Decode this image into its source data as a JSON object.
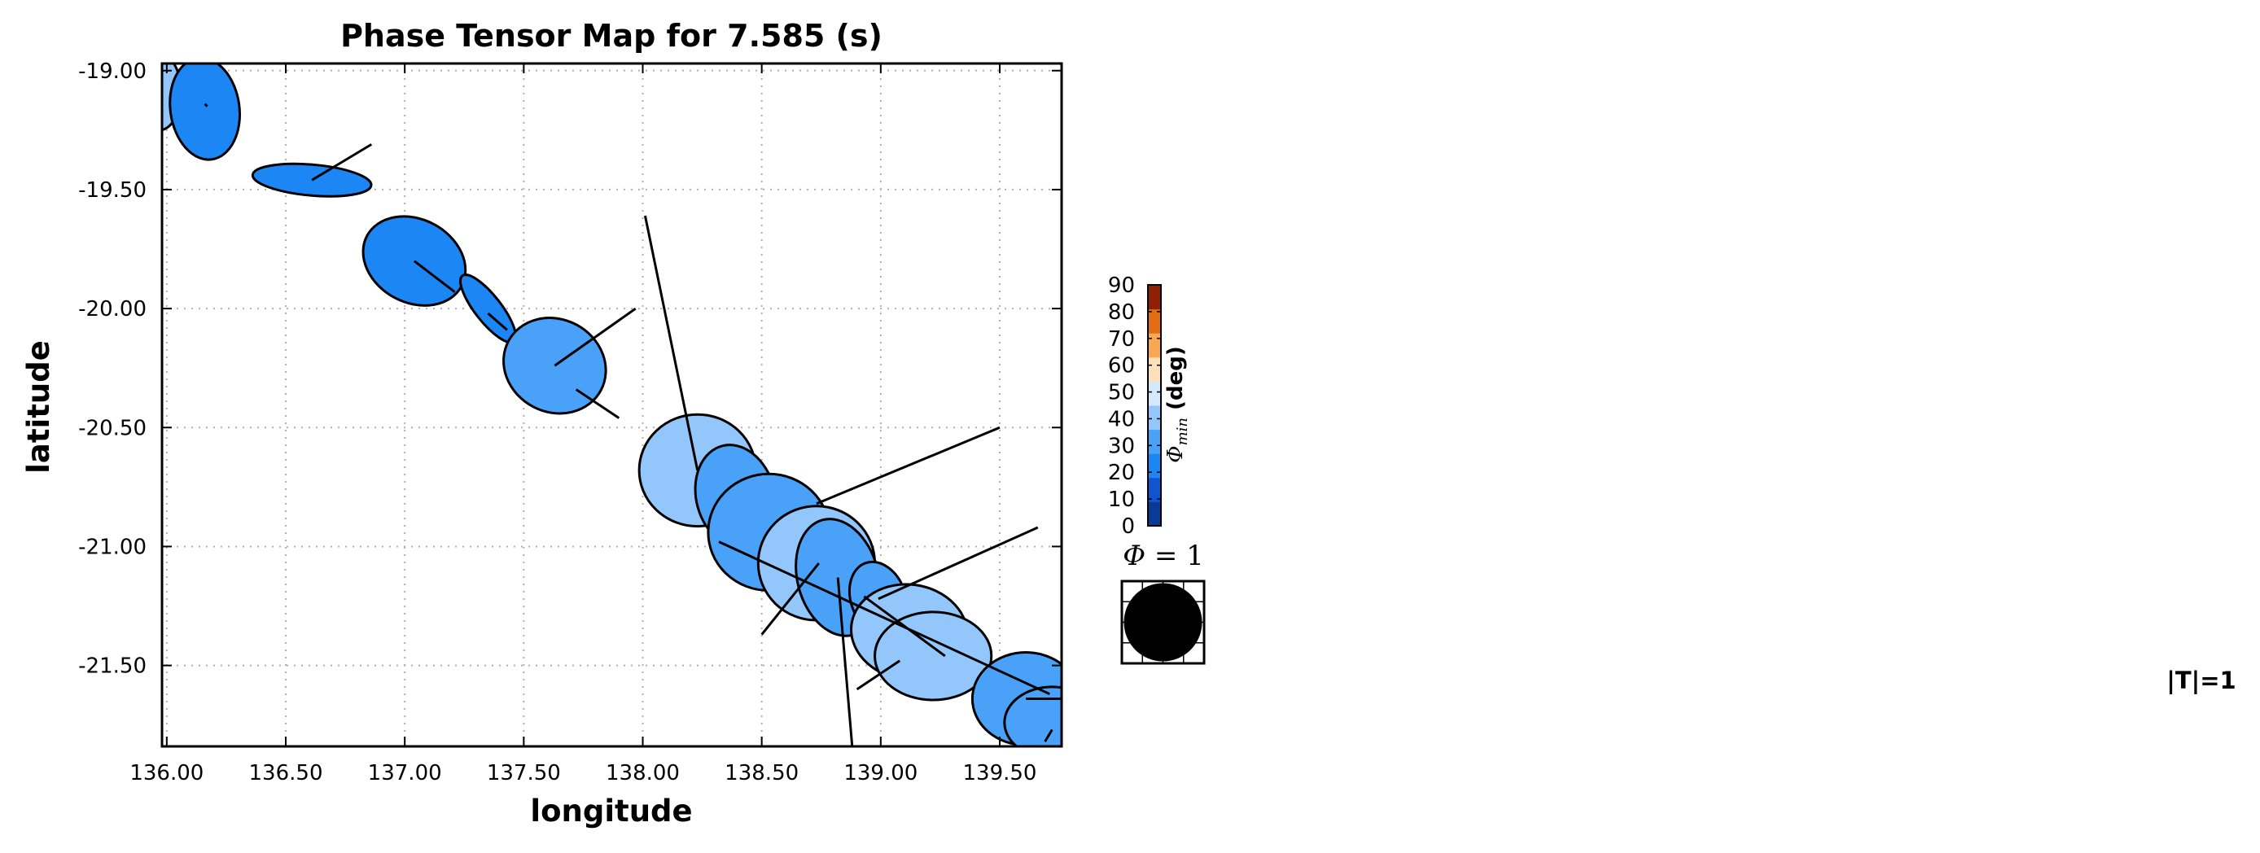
{
  "chart_data": {
    "type": "scatter",
    "title": "Phase Tensor Map for 7.585 (s)",
    "xlabel": "longitude",
    "ylabel": "latitude",
    "xlim": [
      135.98,
      139.76
    ],
    "ylim": [
      -21.84,
      -18.97
    ],
    "x_ticks": [
      136.0,
      136.5,
      137.0,
      137.5,
      138.0,
      138.5,
      139.0,
      139.5
    ],
    "y_ticks": [
      -19.0,
      -19.5,
      -20.0,
      -20.5,
      -21.0,
      -21.5
    ],
    "x_tick_labels": [
      "136.00",
      "136.50",
      "137.00",
      "137.50",
      "138.00",
      "138.50",
      "139.00",
      "139.50"
    ],
    "y_tick_labels": [
      "-19.00",
      "-19.50",
      "-20.00",
      "-20.50",
      "-21.00",
      "-21.50"
    ],
    "grid": true,
    "ellipses": [
      {
        "lon": 135.97,
        "lat": -19.09,
        "w": 0.18,
        "h": 0.32,
        "angle": 0,
        "phimin": 40
      },
      {
        "lon": 136.16,
        "lat": -19.16,
        "w": 0.29,
        "h": 0.43,
        "angle": -8,
        "phimin": 25
      },
      {
        "lon": 136.61,
        "lat": -19.46,
        "w": 0.5,
        "h": 0.13,
        "angle": 5,
        "phimin": 22
      },
      {
        "lon": 137.04,
        "lat": -19.8,
        "w": 0.45,
        "h": 0.35,
        "angle": 28,
        "phimin": 25
      },
      {
        "lon": 137.35,
        "lat": -20.0,
        "w": 0.35,
        "h": 0.11,
        "angle": 52,
        "phimin": 22
      },
      {
        "lon": 137.63,
        "lat": -20.24,
        "w": 0.44,
        "h": 0.39,
        "angle": 28,
        "phimin": 30
      },
      {
        "lon": 138.23,
        "lat": -20.68,
        "w": 0.49,
        "h": 0.47,
        "angle": 0,
        "phimin": 40
      },
      {
        "lon": 138.39,
        "lat": -20.79,
        "w": 0.33,
        "h": 0.44,
        "angle": -15,
        "phimin": 33
      },
      {
        "lon": 138.53,
        "lat": -20.94,
        "w": 0.51,
        "h": 0.49,
        "angle": 0,
        "phimin": 33
      },
      {
        "lon": 138.73,
        "lat": -21.07,
        "w": 0.49,
        "h": 0.48,
        "angle": 0,
        "phimin": 45
      },
      {
        "lon": 138.82,
        "lat": -21.13,
        "w": 0.34,
        "h": 0.5,
        "angle": -15,
        "phimin": 33
      },
      {
        "lon": 138.99,
        "lat": -21.22,
        "w": 0.23,
        "h": 0.32,
        "angle": -20,
        "phimin": 30
      },
      {
        "lon": 139.12,
        "lat": -21.36,
        "w": 0.49,
        "h": 0.4,
        "angle": 8,
        "phimin": 45
      },
      {
        "lon": 139.22,
        "lat": -21.46,
        "w": 0.49,
        "h": 0.37,
        "angle": 0,
        "phimin": 45
      },
      {
        "lon": 139.61,
        "lat": -21.64,
        "w": 0.45,
        "h": 0.39,
        "angle": 0,
        "phimin": 37
      },
      {
        "lon": 139.72,
        "lat": -21.74,
        "w": 0.4,
        "h": 0.3,
        "angle": 0,
        "phimin": 37
      }
    ],
    "induction_arrows": [
      {
        "lon0": 136.16,
        "lat0": -19.14,
        "lon1": 136.17,
        "lat1": -19.15
      },
      {
        "lon0": 136.61,
        "lat0": -19.46,
        "lon1": 136.86,
        "lat1": -19.31
      },
      {
        "lon0": 137.04,
        "lat0": -19.8,
        "lon1": 137.21,
        "lat1": -19.93
      },
      {
        "lon0": 137.35,
        "lat0": -20.02,
        "lon1": 137.43,
        "lat1": -20.09
      },
      {
        "lon0": 137.63,
        "lat0": -20.24,
        "lon1": 137.97,
        "lat1": -20.0
      },
      {
        "lon0": 137.72,
        "lat0": -20.34,
        "lon1": 137.9,
        "lat1": -20.46
      },
      {
        "lon0": 138.23,
        "lat0": -20.68,
        "lon1": 138.01,
        "lat1": -19.61
      },
      {
        "lon0": 138.73,
        "lat0": -20.82,
        "lon1": 139.5,
        "lat1": -20.5
      },
      {
        "lon0": 138.32,
        "lat0": -20.98,
        "lon1": 139.71,
        "lat1": -21.62
      },
      {
        "lon0": 138.74,
        "lat0": -21.07,
        "lon1": 138.5,
        "lat1": -21.37
      },
      {
        "lon0": 138.82,
        "lat0": -21.13,
        "lon1": 138.88,
        "lat1": -21.84
      },
      {
        "lon0": 138.99,
        "lat0": -21.22,
        "lon1": 139.66,
        "lat1": -20.92
      },
      {
        "lon0": 138.93,
        "lat0": -21.21,
        "lon1": 139.27,
        "lat1": -21.46
      },
      {
        "lon0": 139.08,
        "lat0": -21.48,
        "lon1": 138.9,
        "lat1": -21.6
      },
      {
        "lon0": 139.61,
        "lat0": -21.64,
        "lon1": 139.76,
        "lat1": -21.64
      },
      {
        "lon0": 139.72,
        "lat0": -21.77,
        "lon1": 139.69,
        "lat1": -21.82
      }
    ],
    "colorbar": {
      "label": "Φ_min (deg)",
      "label_symbol": "Φ",
      "label_subscript": "min",
      "label_unit": " (deg)",
      "ticks": [
        0,
        10,
        20,
        30,
        40,
        50,
        60,
        70,
        80,
        90
      ],
      "tick_labels": [
        "0",
        "10",
        "20",
        "30",
        "40",
        "50",
        "60",
        "70",
        "80",
        "90"
      ],
      "colors": [
        "#083a96",
        "#0f55d2",
        "#1d86f5",
        "#4aa2f8",
        "#93c6fa",
        "#d4e9fd",
        "#fde0b8",
        "#f8a852",
        "#e26d12",
        "#8f2005"
      ]
    },
    "scale_key": {
      "label_symbol": "Φ",
      "label_rest": " = 1"
    },
    "arrow_legend": "|T|=1"
  }
}
